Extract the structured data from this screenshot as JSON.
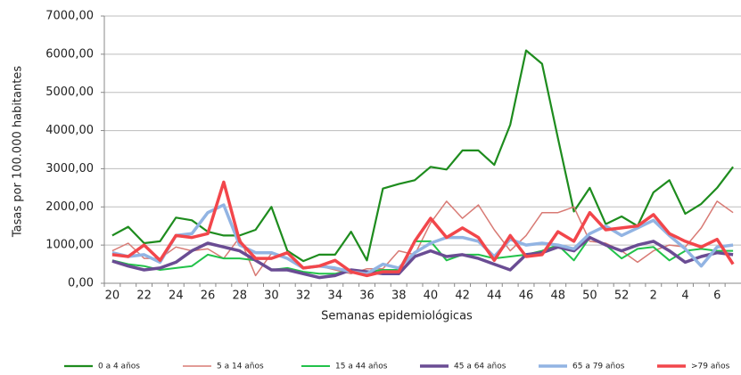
{
  "chart_data": {
    "type": "line",
    "y_label": "Tasas por 100.000 habitantes",
    "x_label": "Semanas epidemiológicas",
    "categories": [
      "20",
      null,
      "22",
      null,
      "24",
      null,
      "26",
      null,
      "28",
      null,
      "30",
      null,
      "32",
      null,
      "34",
      null,
      "36",
      null,
      "38",
      null,
      "40",
      null,
      "42",
      null,
      "44",
      null,
      "46",
      null,
      "48",
      null,
      "50",
      null,
      "52",
      null,
      "2",
      null,
      "4",
      null,
      "6",
      null
    ],
    "ylim": [
      0,
      7000
    ],
    "yticks": [
      {
        "value": 0,
        "label": "0,00"
      },
      {
        "value": 1000,
        "label": "1000,00"
      },
      {
        "value": 2000,
        "label": "2000,00"
      },
      {
        "value": 3000,
        "label": "3000,00"
      },
      {
        "value": 4000,
        "label": "4000,00"
      },
      {
        "value": 5000,
        "label": "5000,00"
      },
      {
        "value": 6000,
        "label": "6000,00"
      },
      {
        "value": 7000,
        "label": "7000,00"
      }
    ],
    "grid": true,
    "legend": "bottom",
    "series": [
      {
        "name": "0 a 4 años",
        "color": "#1e8c1e",
        "values": [
          1250,
          1480,
          1050,
          1100,
          1720,
          1650,
          1350,
          1250,
          1250,
          1400,
          2000,
          850,
          580,
          750,
          750,
          1350,
          600,
          2480,
          2600,
          2700,
          3050,
          2980,
          3480,
          3480,
          3100,
          4150,
          6100,
          5750,
          3800,
          1880,
          2500,
          1550,
          1750,
          1500,
          2380,
          2700,
          1820,
          2080,
          2500,
          3050
        ]
      },
      {
        "name": "5 a 14 años",
        "color": "#d87a74",
        "values": [
          850,
          1050,
          650,
          650,
          950,
          850,
          900,
          650,
          1200,
          200,
          780,
          650,
          380,
          450,
          350,
          250,
          380,
          380,
          850,
          750,
          1580,
          2150,
          1700,
          2050,
          1400,
          850,
          1250,
          1850,
          1850,
          2000,
          1100,
          1050,
          850,
          550,
          850,
          1000,
          950,
          1450,
          2150,
          1850
        ]
      },
      {
        "name": "15 a 44 años",
        "color": "#22c24a",
        "values": [
          600,
          500,
          450,
          350,
          400,
          450,
          750,
          650,
          650,
          600,
          350,
          400,
          300,
          250,
          250,
          350,
          300,
          350,
          350,
          1100,
          1100,
          600,
          750,
          750,
          650,
          700,
          750,
          850,
          1000,
          600,
          1200,
          1000,
          650,
          900,
          950,
          600,
          850,
          900,
          850,
          850
        ]
      },
      {
        "name": "45 a 64 años",
        "color": "#6a4c93",
        "values": [
          580,
          450,
          350,
          400,
          550,
          850,
          1050,
          950,
          850,
          600,
          350,
          350,
          250,
          150,
          200,
          350,
          300,
          250,
          250,
          700,
          850,
          700,
          750,
          650,
          500,
          350,
          750,
          800,
          950,
          850,
          1200,
          1000,
          850,
          1000,
          1100,
          850,
          550,
          700,
          800,
          750
        ]
      },
      {
        "name": "65 a 79 años",
        "color": "#92b4e3",
        "values": [
          800,
          700,
          750,
          550,
          1250,
          1300,
          1850,
          2050,
          1000,
          800,
          800,
          650,
          400,
          450,
          400,
          300,
          250,
          500,
          400,
          800,
          1050,
          1200,
          1200,
          1100,
          700,
          1150,
          1000,
          1050,
          1000,
          900,
          1300,
          1500,
          1250,
          1450,
          1650,
          1250,
          900,
          450,
          950,
          1000
        ]
      },
      {
        "name": ">79 años",
        "color": "#f2464b",
        "values": [
          750,
          700,
          1000,
          600,
          1250,
          1200,
          1300,
          2650,
          1100,
          650,
          650,
          800,
          400,
          450,
          600,
          300,
          200,
          300,
          300,
          1100,
          1700,
          1200,
          1450,
          1200,
          600,
          1250,
          700,
          750,
          1350,
          1100,
          1850,
          1400,
          1450,
          1500,
          1800,
          1300,
          1100,
          950,
          1150,
          500
        ]
      }
    ]
  }
}
